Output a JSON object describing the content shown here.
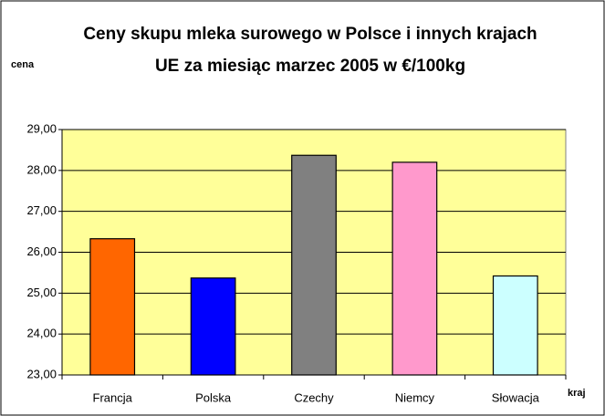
{
  "chart_data": {
    "type": "bar",
    "title": [
      "Ceny skupu mleka surowego w Polsce i innych krajach",
      "UE za miesiąc marzec 2005 w €/100kg"
    ],
    "y_label": "cena",
    "x_label": "kraj",
    "categories": [
      "Francja",
      "Polska",
      "Czechy",
      "Niemcy",
      "Słowacja"
    ],
    "values": [
      26.33,
      25.37,
      28.37,
      28.2,
      25.42
    ],
    "colors": [
      "#ff6600",
      "#0000ff",
      "#808080",
      "#ff99cc",
      "#ccffff"
    ],
    "ylim": [
      23,
      29
    ],
    "yticks": [
      {
        "value": 23,
        "label": "23,00"
      },
      {
        "value": 24,
        "label": "24,00"
      },
      {
        "value": 25,
        "label": "25,00"
      },
      {
        "value": 26,
        "label": "26,00"
      },
      {
        "value": 27,
        "label": "27,00"
      },
      {
        "value": 28,
        "label": "28,00"
      },
      {
        "value": 29,
        "label": "29,00"
      }
    ],
    "grid": true,
    "plot_background": "#ffff99"
  }
}
